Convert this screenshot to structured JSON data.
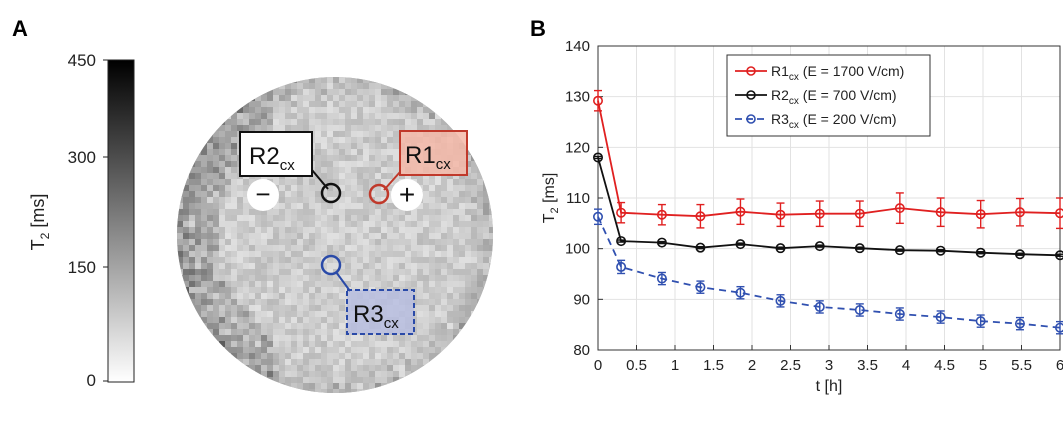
{
  "panel_a": {
    "label": "A",
    "colorbar": {
      "ylabel": "T",
      "ylabel_sub": "2",
      "ylabel_unit": " [ms]",
      "ticks": [
        "450",
        "300",
        "150",
        "0"
      ],
      "range": [
        0,
        450
      ]
    },
    "roi": [
      {
        "name": "R1",
        "sub": "cx",
        "color": "#c0392b",
        "fill": "#f4b8a8"
      },
      {
        "name": "R2",
        "sub": "cx",
        "color": "#111111",
        "fill": "#ffffff"
      },
      {
        "name": "R3",
        "sub": "cx",
        "color": "#2a4aa8",
        "fill": "#b8bee0"
      }
    ],
    "electrodes": {
      "negative": "−",
      "positive": "+"
    }
  },
  "panel_b": {
    "label": "B",
    "chart_data": {
      "type": "line",
      "xlabel": "t [h]",
      "ylabel": "T",
      "ylabel_sub": "2",
      "ylabel_unit": " [ms]",
      "xlim": [
        0,
        6
      ],
      "ylim": [
        80,
        140
      ],
      "xticks": [
        "0",
        "0.5",
        "1",
        "1.5",
        "2",
        "2.5",
        "3",
        "3.5",
        "4",
        "4.5",
        "5",
        "5.5",
        "6"
      ],
      "yticks": [
        "80",
        "90",
        "100",
        "110",
        "120",
        "130",
        "140"
      ],
      "grid": true,
      "legend_position": "top-center",
      "series": [
        {
          "name": "R1",
          "name_sub": "cx",
          "name_rest": " (E = 1700 V/cm)",
          "color": "#e02020",
          "dashed": false,
          "x": [
            0,
            0.3,
            0.83,
            1.33,
            1.85,
            2.37,
            2.88,
            3.4,
            3.92,
            4.45,
            4.97,
            5.48,
            6.0
          ],
          "y": [
            129.2,
            107.1,
            106.7,
            106.4,
            107.3,
            106.7,
            106.9,
            106.9,
            108.0,
            107.2,
            106.8,
            107.2,
            107.0
          ],
          "err": [
            2.0,
            2.0,
            2.0,
            2.3,
            2.5,
            2.3,
            2.5,
            2.5,
            3.0,
            2.8,
            2.7,
            2.7,
            3.0
          ]
        },
        {
          "name": "R2",
          "name_sub": "cx",
          "name_rest": " (E = 700 V/cm)",
          "color": "#111111",
          "dashed": false,
          "x": [
            0,
            0.3,
            0.83,
            1.33,
            1.85,
            2.37,
            2.88,
            3.4,
            3.92,
            4.45,
            4.97,
            5.48,
            6.0
          ],
          "y": [
            118.0,
            101.5,
            101.2,
            100.2,
            100.9,
            100.1,
            100.5,
            100.1,
            99.7,
            99.6,
            99.2,
            98.9,
            98.7
          ],
          "err": [
            0.2,
            0.2,
            0.2,
            0.2,
            0.2,
            0.2,
            0.2,
            0.2,
            0.2,
            0.2,
            0.2,
            0.2,
            0.2
          ]
        },
        {
          "name": "R3",
          "name_sub": "cx",
          "name_rest": " (E = 200 V/cm)",
          "color": "#3050b0",
          "dashed": true,
          "x": [
            0,
            0.3,
            0.83,
            1.33,
            1.85,
            2.37,
            2.88,
            3.4,
            3.92,
            4.45,
            4.97,
            5.48,
            6.0
          ],
          "y": [
            106.3,
            96.4,
            94.1,
            92.4,
            91.3,
            89.7,
            88.5,
            87.9,
            87.1,
            86.5,
            85.7,
            85.2,
            84.4
          ],
          "err": [
            1.5,
            1.3,
            1.2,
            1.2,
            1.2,
            1.2,
            1.2,
            1.2,
            1.2,
            1.2,
            1.2,
            1.2,
            1.2
          ]
        }
      ]
    }
  }
}
